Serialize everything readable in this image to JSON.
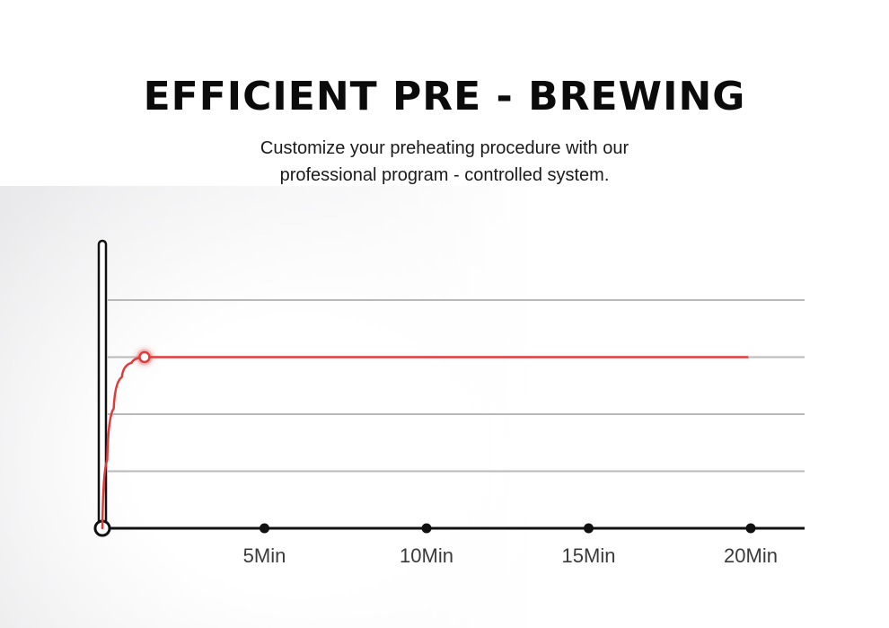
{
  "header": {
    "title": "EFFICIENT PRE - BREWING",
    "subtitle_line1": "Customize your preheating procedure with our",
    "subtitle_line2": "professional program - controlled system."
  },
  "colors": {
    "curve": "#e23a3a",
    "axis": "#111111",
    "grid": "#b9b9b9",
    "text": "#1a1a1a"
  },
  "chart_data": {
    "type": "line",
    "title": "",
    "xlabel": "",
    "ylabel": "",
    "x_ticks": [
      {
        "value": 5,
        "label": "5Min"
      },
      {
        "value": 10,
        "label": "10Min"
      },
      {
        "value": 15,
        "label": "15Min"
      },
      {
        "value": 20,
        "label": "20Min"
      }
    ],
    "xlim": [
      0,
      22
    ],
    "ylim": [
      0,
      4
    ],
    "grid": true,
    "gridlines_y": [
      1,
      2,
      3,
      4
    ],
    "series": [
      {
        "points": [
          {
            "x": 0,
            "y": 0
          },
          {
            "x": 0.15,
            "y": 1.2
          },
          {
            "x": 0.35,
            "y": 2.1
          },
          {
            "x": 0.6,
            "y": 2.65
          },
          {
            "x": 0.9,
            "y": 2.9
          },
          {
            "x": 1.3,
            "y": 3.0
          },
          {
            "x": 19.9,
            "y": 3.0
          }
        ],
        "marker_x": 1.3,
        "marker_y": 3.0
      }
    ]
  }
}
